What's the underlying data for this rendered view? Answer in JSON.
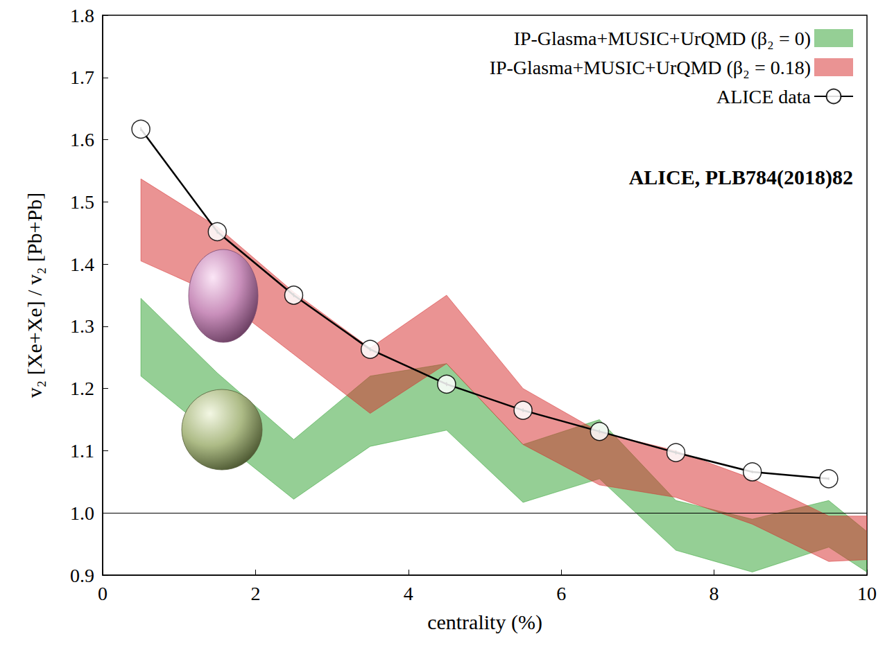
{
  "chart_data": {
    "type": "line",
    "x_label": "centrality (%)",
    "y_label": "v₂ [Xe+Xe] / v₂ [Pb+Pb]",
    "annotations": [
      "ALICE, PLB784(2018)82"
    ],
    "xlim": [
      0,
      10
    ],
    "xticks": [
      0,
      2,
      4,
      6,
      8,
      10
    ],
    "ylim": [
      0.9,
      1.8
    ],
    "yticks": [
      0.9,
      {
        "value": 1,
        "label": "1.0"
      },
      1.1,
      1.2,
      1.3,
      1.4,
      1.5,
      1.6,
      1.7,
      1.8
    ],
    "grid": false,
    "legend": "upper right",
    "reference_line": 1,
    "series": [
      {
        "name": "IP-Glasma+MUSIC+UrQMD (β₂ = 0)",
        "type": "band",
        "color": "#2ca02c",
        "x": [
          0.5,
          1.5,
          2.5,
          3.5,
          4.5,
          5.5,
          6.5,
          7.5,
          8.5,
          9.5,
          10
        ],
        "lower": [
          1.22,
          1.12,
          1.022,
          1.107,
          1.133,
          1.017,
          1.055,
          0.94,
          0.905,
          0.945,
          0.905
        ],
        "upper": [
          1.345,
          1.225,
          1.118,
          1.22,
          1.24,
          1.11,
          1.15,
          1.02,
          0.99,
          1.02,
          0.97
        ]
      },
      {
        "name": "IP-Glasma+MUSIC+UrQMD (β₂ = 0.18)",
        "type": "band",
        "color": "#d62728",
        "x": [
          0.5,
          1.5,
          2.5,
          3.5,
          4.5,
          5.5,
          6.5,
          7.5,
          8.5,
          9.5,
          10
        ],
        "lower": [
          1.405,
          1.35,
          1.255,
          1.16,
          1.24,
          1.11,
          1.045,
          1.025,
          0.982,
          0.922,
          0.925
        ],
        "upper": [
          1.537,
          1.46,
          1.355,
          1.265,
          1.35,
          1.2,
          1.13,
          1.1,
          1.055,
          0.995,
          0.995
        ]
      },
      {
        "name": "ALICE data",
        "type": "line",
        "color": "#000000",
        "marker": "circle",
        "line_style": "solid",
        "x": [
          0.5,
          1.5,
          2.5,
          3.5,
          4.5,
          5.5,
          6.5,
          7.5,
          8.5,
          9.5
        ],
        "values": [
          1.617,
          1.452,
          1.35,
          1.263,
          1.207,
          1.165,
          1.131,
          1.097,
          1.066,
          1.055
        ],
        "errors": [
          0.012,
          0.012,
          0.012,
          0.012,
          0.012,
          0.012,
          0.012,
          0.012,
          0.011,
          0.011
        ]
      }
    ]
  }
}
